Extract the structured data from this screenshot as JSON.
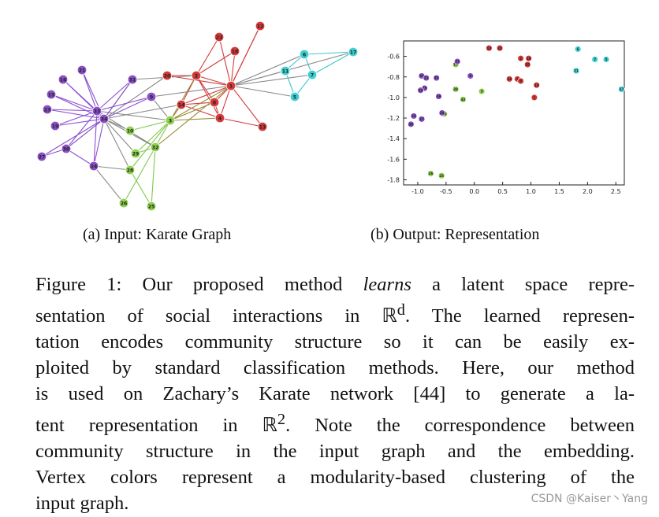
{
  "figure_a": {
    "caption": "(a) Input: Karate Graph",
    "colors": {
      "red": "#d43a3a",
      "purple": "#8a4fc6",
      "green": "#8fd14f",
      "cyan": "#3fcfd1",
      "edge_red": "#d23b3b",
      "edge_purple": "#8b4fd0",
      "edge_cyan": "#3fc6cc",
      "edge_gray": "#888888",
      "edge_green": "#7fc84a",
      "edge_olive": "#9a8a3a"
    },
    "nodes": [
      {
        "id": "1",
        "group": "red"
      },
      {
        "id": "2",
        "group": "red"
      },
      {
        "id": "4",
        "group": "red"
      },
      {
        "id": "8",
        "group": "red"
      },
      {
        "id": "12",
        "group": "red"
      },
      {
        "id": "13",
        "group": "red"
      },
      {
        "id": "14",
        "group": "red"
      },
      {
        "id": "18",
        "group": "red"
      },
      {
        "id": "20",
        "group": "red"
      },
      {
        "id": "22",
        "group": "red"
      },
      {
        "id": "5",
        "group": "cyan"
      },
      {
        "id": "6",
        "group": "cyan"
      },
      {
        "id": "7",
        "group": "cyan"
      },
      {
        "id": "11",
        "group": "cyan"
      },
      {
        "id": "17",
        "group": "cyan"
      },
      {
        "id": "3",
        "group": "green"
      },
      {
        "id": "10",
        "group": "green"
      },
      {
        "id": "25",
        "group": "green"
      },
      {
        "id": "26",
        "group": "green"
      },
      {
        "id": "28",
        "group": "green"
      },
      {
        "id": "29",
        "group": "green"
      },
      {
        "id": "32",
        "group": "green"
      },
      {
        "id": "9",
        "group": "purple"
      },
      {
        "id": "15",
        "group": "purple"
      },
      {
        "id": "16",
        "group": "purple"
      },
      {
        "id": "19",
        "group": "purple"
      },
      {
        "id": "21",
        "group": "purple"
      },
      {
        "id": "23",
        "group": "purple"
      },
      {
        "id": "24",
        "group": "purple"
      },
      {
        "id": "27",
        "group": "purple"
      },
      {
        "id": "30",
        "group": "purple"
      },
      {
        "id": "31",
        "group": "purple"
      },
      {
        "id": "33",
        "group": "purple"
      },
      {
        "id": "34",
        "group": "purple"
      }
    ]
  },
  "figure_b": {
    "caption": "(b) Output: Representation"
  },
  "chart_data": {
    "type": "scatter",
    "title": "",
    "xlabel": "",
    "ylabel": "",
    "xlim": [
      -1.25,
      2.65
    ],
    "ylim": [
      -1.85,
      -0.45
    ],
    "xticks": [
      "-1.0",
      "-0.5",
      "0.0",
      "0.5",
      "1.0",
      "1.5",
      "2.0",
      "2.5"
    ],
    "yticks": [
      "-0.6",
      "-0.8",
      "-1.0",
      "-1.2",
      "-1.4",
      "-1.6",
      "-1.8"
    ],
    "xtick_values": [
      -1.0,
      -0.5,
      0.0,
      0.5,
      1.0,
      1.5,
      2.0,
      2.5
    ],
    "ytick_values": [
      -0.6,
      -0.8,
      -1.0,
      -1.2,
      -1.4,
      -1.6,
      -1.8
    ],
    "points": [
      {
        "label": "12",
        "x": 0.26,
        "y": -0.52,
        "group": "red"
      },
      {
        "label": "22",
        "x": 0.45,
        "y": -0.52,
        "group": "red"
      },
      {
        "label": "2",
        "x": 0.82,
        "y": -0.62,
        "group": "red"
      },
      {
        "label": "18",
        "x": 0.96,
        "y": -0.62,
        "group": "red"
      },
      {
        "label": "20",
        "x": 0.94,
        "y": -0.68,
        "group": "red"
      },
      {
        "label": "14",
        "x": 0.62,
        "y": -0.82,
        "group": "red"
      },
      {
        "label": "4",
        "x": 0.76,
        "y": -0.82,
        "group": "red"
      },
      {
        "label": "8",
        "x": 0.82,
        "y": -0.84,
        "group": "red"
      },
      {
        "label": "13",
        "x": 1.1,
        "y": -0.88,
        "group": "red"
      },
      {
        "label": "1",
        "x": 1.06,
        "y": -1.0,
        "group": "red"
      },
      {
        "label": "6",
        "x": 1.83,
        "y": -0.53,
        "group": "cyan"
      },
      {
        "label": "7",
        "x": 2.13,
        "y": -0.63,
        "group": "cyan"
      },
      {
        "label": "5",
        "x": 2.33,
        "y": -0.63,
        "group": "cyan"
      },
      {
        "label": "11",
        "x": 1.8,
        "y": -0.74,
        "group": "cyan"
      },
      {
        "label": "17",
        "x": 2.6,
        "y": -0.92,
        "group": "cyan"
      },
      {
        "label": "3",
        "x": 0.13,
        "y": -0.94,
        "group": "green"
      },
      {
        "label": "10",
        "x": -0.33,
        "y": -0.68,
        "group": "green"
      },
      {
        "label": "32",
        "x": -0.2,
        "y": -1.02,
        "group": "green"
      },
      {
        "label": "28",
        "x": -0.33,
        "y": -0.92,
        "group": "green"
      },
      {
        "label": "29",
        "x": -0.53,
        "y": -1.16,
        "group": "green"
      },
      {
        "label": "26",
        "x": -0.77,
        "y": -1.74,
        "group": "green"
      },
      {
        "label": "25",
        "x": -0.58,
        "y": -1.76,
        "group": "green"
      },
      {
        "label": "31",
        "x": -0.3,
        "y": -0.65,
        "group": "purple"
      },
      {
        "label": "9",
        "x": -0.07,
        "y": -0.79,
        "group": "purple"
      },
      {
        "label": "33",
        "x": -0.67,
        "y": -0.81,
        "group": "purple"
      },
      {
        "label": "34",
        "x": -0.93,
        "y": -0.79,
        "group": "purple"
      },
      {
        "label": "21",
        "x": -0.85,
        "y": -0.81,
        "group": "purple"
      },
      {
        "label": "15",
        "x": -0.88,
        "y": -0.91,
        "group": "purple"
      },
      {
        "label": "16",
        "x": -0.95,
        "y": -0.93,
        "group": "purple"
      },
      {
        "label": "19",
        "x": -0.63,
        "y": -0.99,
        "group": "purple"
      },
      {
        "label": "23",
        "x": -1.07,
        "y": -1.18,
        "group": "purple"
      },
      {
        "label": "24",
        "x": -0.57,
        "y": -1.15,
        "group": "purple"
      },
      {
        "label": "27",
        "x": -0.93,
        "y": -1.21,
        "group": "purple"
      },
      {
        "label": "30",
        "x": -1.12,
        "y": -1.26,
        "group": "purple"
      }
    ]
  },
  "caption": {
    "prefix": "Figure 1: Our proposed method ",
    "emph": "learns",
    "l1_rest": " a latent space repre-",
    "l2_a": "sentation of social interactions in ",
    "r_symbol": "ℝ",
    "l2_sup": "d",
    "l2_b": ". The learned represen-",
    "l3": "tation encodes community structure so it can be easily ex-",
    "l4": "ploited by standard classification methods. Here, our method",
    "l5": "is used on Zachary’s Karate network [44] to generate a la-",
    "l6_a": "tent representation in ",
    "l6_sup": "2",
    "l6_b": ". Note the correspondence between",
    "l7": "community structure in the input graph and the embedding.",
    "l8": "Vertex colors represent a modularity-based clustering of the",
    "l9": "input graph."
  },
  "watermark": "CSDN @Kaiser丶Yang"
}
